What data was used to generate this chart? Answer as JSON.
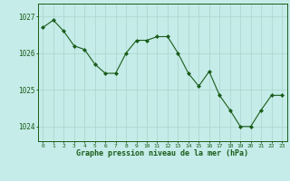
{
  "x": [
    0,
    1,
    2,
    3,
    4,
    5,
    6,
    7,
    8,
    9,
    10,
    11,
    12,
    13,
    14,
    15,
    16,
    17,
    18,
    19,
    20,
    21,
    22,
    23
  ],
  "y": [
    1026.7,
    1026.9,
    1026.6,
    1026.2,
    1026.1,
    1025.7,
    1025.45,
    1025.45,
    1026.0,
    1026.35,
    1026.35,
    1026.45,
    1026.45,
    1026.0,
    1025.45,
    1025.1,
    1025.5,
    1024.85,
    1024.45,
    1024.0,
    1024.0,
    1024.45,
    1024.85,
    1024.85
  ],
  "line_color": "#1a5c1a",
  "marker_color": "#1a5c1a",
  "bg_color": "#c5ece8",
  "grid_color": "#aad4ce",
  "xlabel": "Graphe pression niveau de la mer (hPa)",
  "xlabel_color": "#1a5c1a",
  "tick_color": "#1a5c1a",
  "ylim_min": 1023.6,
  "ylim_max": 1027.35,
  "yticks": [
    1024,
    1025,
    1026,
    1027
  ],
  "xticks": [
    0,
    1,
    2,
    3,
    4,
    5,
    6,
    7,
    8,
    9,
    10,
    11,
    12,
    13,
    14,
    15,
    16,
    17,
    18,
    19,
    20,
    21,
    22,
    23
  ]
}
